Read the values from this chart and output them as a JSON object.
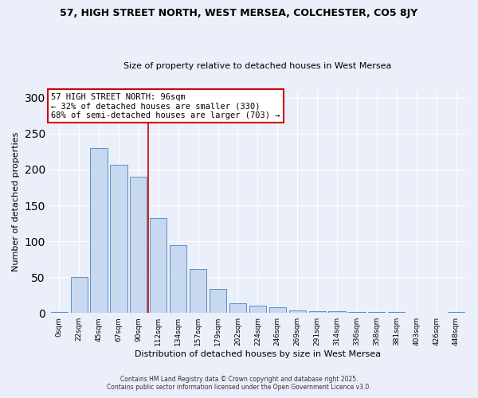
{
  "title": "57, HIGH STREET NORTH, WEST MERSEA, COLCHESTER, CO5 8JY",
  "subtitle": "Size of property relative to detached houses in West Mersea",
  "xlabel": "Distribution of detached houses by size in West Mersea",
  "ylabel": "Number of detached properties",
  "bar_color": "#c8d8ef",
  "bar_edge_color": "#5b8fc9",
  "background_color": "#eaeffa",
  "grid_color": "#ffffff",
  "categories": [
    "0sqm",
    "22sqm",
    "45sqm",
    "67sqm",
    "90sqm",
    "112sqm",
    "134sqm",
    "157sqm",
    "179sqm",
    "202sqm",
    "224sqm",
    "246sqm",
    "269sqm",
    "291sqm",
    "314sqm",
    "336sqm",
    "358sqm",
    "381sqm",
    "403sqm",
    "426sqm",
    "448sqm"
  ],
  "values": [
    1,
    50,
    230,
    207,
    190,
    132,
    94,
    61,
    34,
    14,
    10,
    8,
    4,
    3,
    2,
    1,
    1,
    1,
    0,
    0,
    1
  ],
  "vline_x": 4.5,
  "vline_color": "#cc0000",
  "annotation_line1": "57 HIGH STREET NORTH: 96sqm",
  "annotation_line2": "← 32% of detached houses are smaller (330)",
  "annotation_line3": "68% of semi-detached houses are larger (703) →",
  "annotation_box_color": "#ffffff",
  "annotation_box_edge": "#cc0000",
  "annotation_fontsize": 7.5,
  "footnote1": "Contains HM Land Registry data © Crown copyright and database right 2025.",
  "footnote2": "Contains public sector information licensed under the Open Government Licence v3.0.",
  "ylim": [
    0,
    310
  ],
  "yticks": [
    0,
    50,
    100,
    150,
    200,
    250,
    300
  ]
}
